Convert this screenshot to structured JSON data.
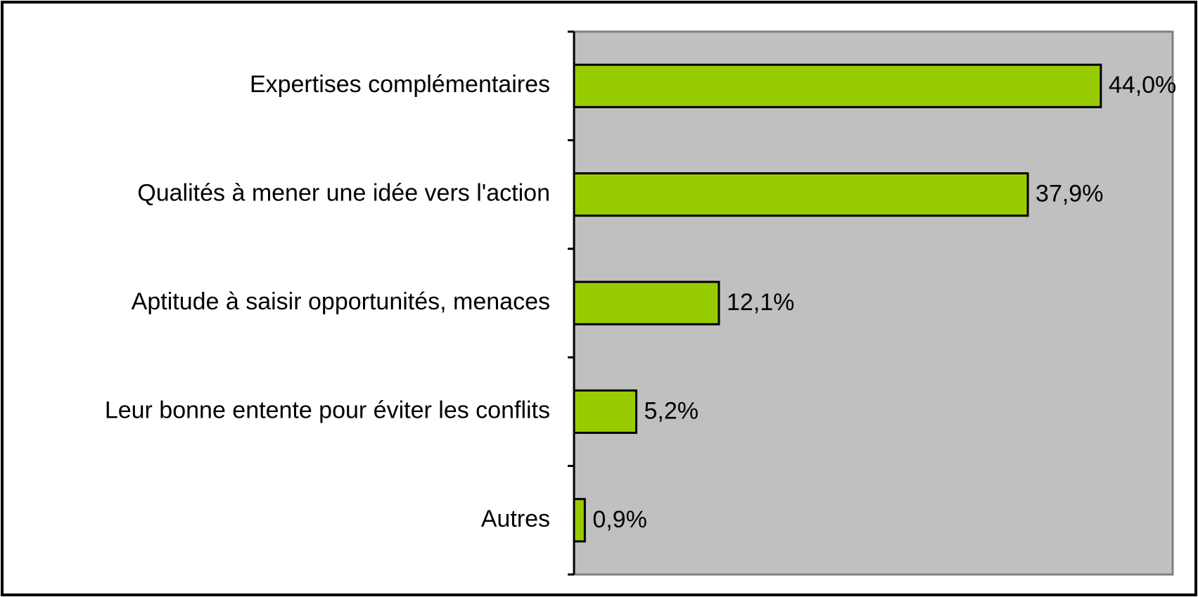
{
  "chart_data": {
    "type": "barh",
    "categories": [
      "Expertises complémentaires",
      "Qualités à mener une idée vers l'action",
      "Aptitude à saisir opportunités, menaces",
      "Leur bonne entente pour éviter les conflits",
      "Autres"
    ],
    "values": [
      44.0,
      37.9,
      12.1,
      5.2,
      0.9
    ],
    "value_labels": [
      "44,0%",
      "37,9%",
      "12,1%",
      "5,2%",
      "0,9%"
    ],
    "color": "#99cc00",
    "xlim": [
      0,
      50
    ]
  }
}
